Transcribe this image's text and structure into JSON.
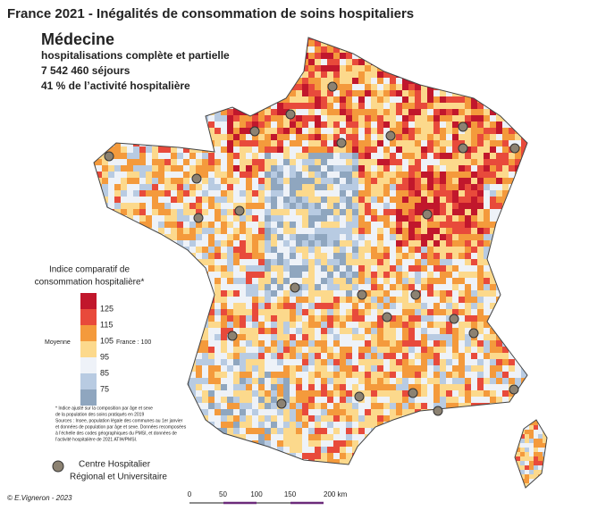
{
  "header": {
    "title": "France 2021 - Inégalités de consommation de soins hospitaliers",
    "subtitle": "Médecine",
    "lines": [
      "hospitalisations complète et partielle",
      "7 542 460 séjours",
      "41 % de l’activité hospitalière"
    ]
  },
  "legend": {
    "title": [
      "Indice comparatif de",
      "consommation hospitalière*"
    ],
    "colors": [
      "#c1172c",
      "#e84a3b",
      "#f49a3c",
      "#fcd98c",
      "#eef2f8",
      "#b8cbe2",
      "#8fa6bf"
    ],
    "thresholds": [
      125,
      115,
      105,
      95,
      85,
      75
    ],
    "average_label": "Moyenne",
    "france_label": "France : 100",
    "footnote": [
      "* Indice ajusté sur la composition par âge et sexe",
      "de la population des soins pratiqués en 2019",
      "Sources : Insee, population légale des communes au 1er janvier",
      "et données de population par âge et sexe. Données recomposées",
      "à l’échelle des codes géographiques du PMSI, et données de",
      "l’activité hospitalière de 2021 ATIH/PMSI."
    ],
    "chu_label": [
      "Centre Hospitalier",
      "Régional et Universitaire"
    ]
  },
  "credit": "© E.Vigneron - 2023",
  "scale": {
    "labels": [
      "0",
      "50",
      "100",
      "150",
      "200 km"
    ]
  }
}
